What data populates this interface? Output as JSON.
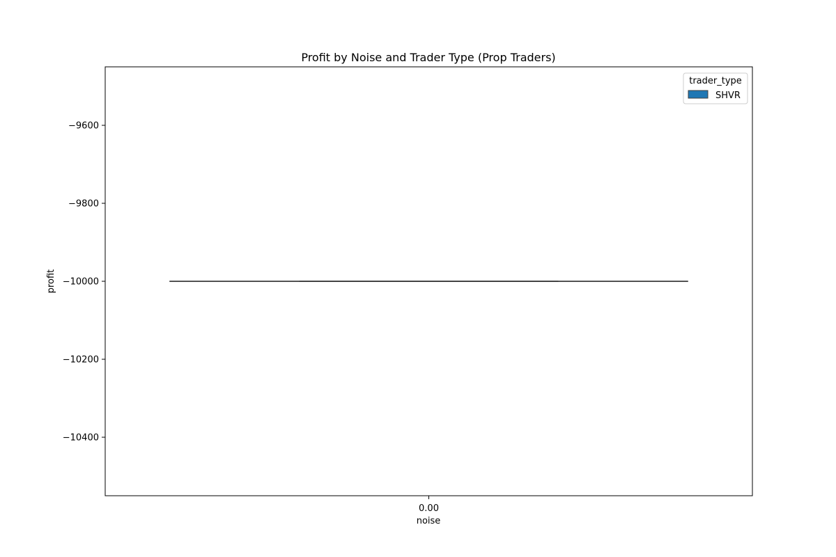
{
  "chart_data": {
    "type": "box",
    "title": "Profit by Noise and Trader Type (Prop Traders)",
    "xlabel": "noise",
    "ylabel": "profit",
    "categories": [
      "0.00"
    ],
    "ylim": [
      -10550,
      -9450
    ],
    "yticks": [
      -9600,
      -9800,
      -10000,
      -10200,
      -10400
    ],
    "ytick_labels": [
      "−9600",
      "−9800",
      "−10000",
      "−10200",
      "−10400"
    ],
    "grid": false,
    "legend": {
      "title": "trader_type",
      "placement": "top-right"
    },
    "series": [
      {
        "name": "SHVR",
        "color": "#1f77b4",
        "boxes": [
          {
            "category": "0.00",
            "min": -10000,
            "q1": -10000,
            "median": -10000,
            "q3": -10000,
            "max": -10000
          }
        ]
      }
    ]
  }
}
